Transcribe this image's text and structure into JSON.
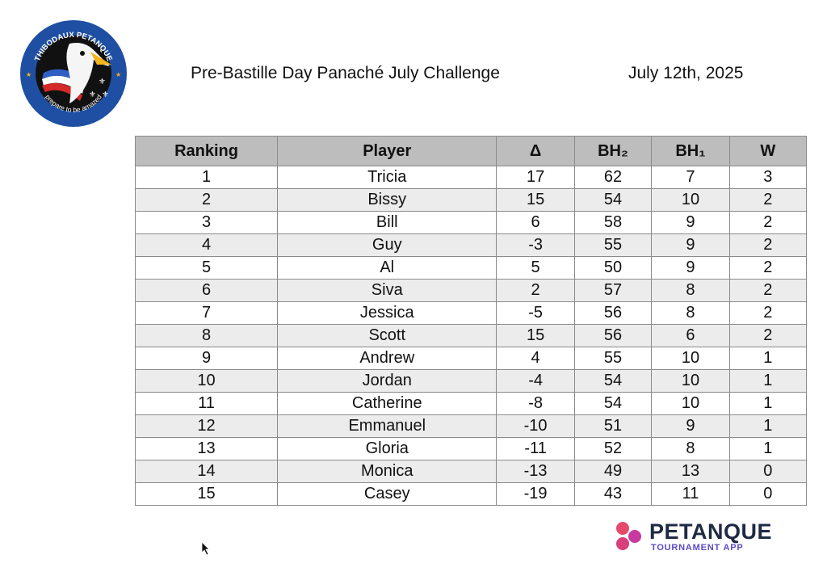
{
  "header": {
    "logo_text_top": "THIBODAUX PETANQUE",
    "logo_text_bottom": "prepare to be amazed",
    "title": "Pre-Bastille Day Panaché July Challenge",
    "date": "July 12th, 2025"
  },
  "table": {
    "columns": [
      "Ranking",
      "Player",
      "Δ",
      "BH₂",
      "BH₁",
      "W"
    ],
    "rows": [
      {
        "rank": "1",
        "player": "Tricia",
        "delta": "17",
        "bh2": "62",
        "bh1": "7",
        "w": "3"
      },
      {
        "rank": "2",
        "player": "Bissy",
        "delta": "15",
        "bh2": "54",
        "bh1": "10",
        "w": "2"
      },
      {
        "rank": "3",
        "player": "Bill",
        "delta": "6",
        "bh2": "58",
        "bh1": "9",
        "w": "2"
      },
      {
        "rank": "4",
        "player": "Guy",
        "delta": "-3",
        "bh2": "55",
        "bh1": "9",
        "w": "2"
      },
      {
        "rank": "5",
        "player": "Al",
        "delta": "5",
        "bh2": "50",
        "bh1": "9",
        "w": "2"
      },
      {
        "rank": "6",
        "player": "Siva",
        "delta": "2",
        "bh2": "57",
        "bh1": "8",
        "w": "2"
      },
      {
        "rank": "7",
        "player": "Jessica",
        "delta": "-5",
        "bh2": "56",
        "bh1": "8",
        "w": "2"
      },
      {
        "rank": "8",
        "player": "Scott",
        "delta": "15",
        "bh2": "56",
        "bh1": "6",
        "w": "2"
      },
      {
        "rank": "9",
        "player": "Andrew",
        "delta": "4",
        "bh2": "55",
        "bh1": "10",
        "w": "1"
      },
      {
        "rank": "10",
        "player": "Jordan",
        "delta": "-4",
        "bh2": "54",
        "bh1": "10",
        "w": "1"
      },
      {
        "rank": "11",
        "player": "Catherine",
        "delta": "-8",
        "bh2": "54",
        "bh1": "10",
        "w": "1"
      },
      {
        "rank": "12",
        "player": "Emmanuel",
        "delta": "-10",
        "bh2": "51",
        "bh1": "9",
        "w": "1"
      },
      {
        "rank": "13",
        "player": "Gloria",
        "delta": "-11",
        "bh2": "52",
        "bh1": "8",
        "w": "1"
      },
      {
        "rank": "14",
        "player": "Monica",
        "delta": "-13",
        "bh2": "49",
        "bh1": "13",
        "w": "0"
      },
      {
        "rank": "15",
        "player": "Casey",
        "delta": "-19",
        "bh2": "43",
        "bh1": "11",
        "w": "0"
      }
    ]
  },
  "footer": {
    "brand_name": "PETANQUE",
    "brand_sub": "TOURNAMENT APP"
  },
  "colors": {
    "header_bg": "#bdbdbd",
    "stripe_bg": "#ececec",
    "logo_blue": "#1f4fa3",
    "brand_dark": "#1f2a44",
    "brand_accent": "#5b4bc4"
  },
  "icons": [
    "club-logo",
    "brand-balls-icon",
    "mouse-cursor-icon"
  ]
}
